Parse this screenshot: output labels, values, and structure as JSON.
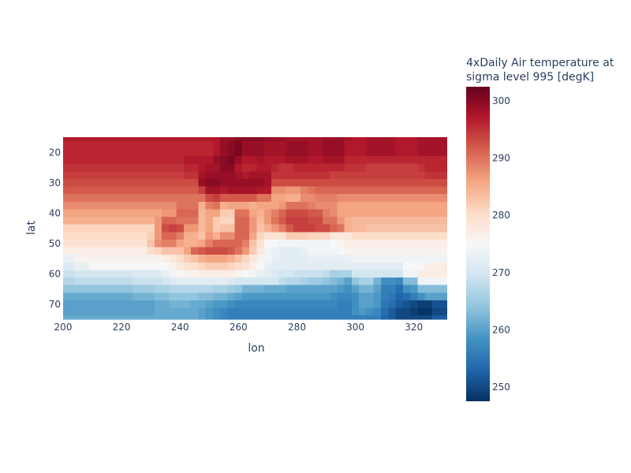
{
  "chart_data": {
    "type": "heatmap",
    "xlabel": "lon",
    "ylabel": "lat",
    "x_range": [
      200,
      332.5
    ],
    "y_range": [
      15,
      75
    ],
    "y_reversed": true,
    "x_ticks": [
      "200",
      "220",
      "240",
      "260",
      "280",
      "300",
      "320"
    ],
    "y_ticks": [
      "20",
      "30",
      "40",
      "50",
      "60",
      "70"
    ],
    "x_tick_values": [
      200,
      220,
      240,
      260,
      280,
      300,
      320
    ],
    "y_tick_values": [
      20,
      30,
      40,
      50,
      60,
      70
    ],
    "lon_step": 2.5,
    "lat_step": 2.5,
    "lon": [
      200,
      202.5,
      205,
      207.5,
      210,
      212.5,
      215,
      217.5,
      220,
      222.5,
      225,
      227.5,
      230,
      232.5,
      235,
      237.5,
      240,
      242.5,
      245,
      247.5,
      250,
      252.5,
      255,
      257.5,
      260,
      262.5,
      265,
      267.5,
      270,
      272.5,
      275,
      277.5,
      280,
      282.5,
      285,
      287.5,
      290,
      292.5,
      295,
      297.5,
      300,
      302.5,
      305,
      307.5,
      310,
      312.5,
      315,
      317.5,
      320,
      322.5,
      325,
      327.5,
      330
    ],
    "lat": [
      15,
      17.5,
      20,
      22.5,
      25,
      27.5,
      30,
      32.5,
      35,
      37.5,
      40,
      42.5,
      45,
      47.5,
      50,
      52.5,
      55,
      57.5,
      60,
      62.5,
      65,
      67.5,
      70,
      72.5,
      75
    ],
    "z": [
      [
        297,
        297,
        297,
        297,
        297,
        297,
        297,
        297,
        297,
        297,
        297,
        297,
        297,
        297,
        297,
        297,
        297,
        297,
        297,
        297,
        297,
        297,
        299,
        299,
        300,
        300,
        300,
        300,
        299,
        299,
        299,
        298,
        298,
        298,
        298,
        298,
        299,
        299,
        299,
        298,
        297,
        297,
        298,
        298,
        298,
        298,
        297,
        297,
        297,
        298,
        298,
        298,
        298
      ],
      [
        296,
        296,
        296,
        296,
        296,
        296,
        296,
        296,
        296,
        296,
        296,
        296,
        296,
        296,
        296,
        296,
        296,
        296,
        296,
        296,
        296,
        297,
        299,
        300,
        301,
        299,
        299,
        299,
        298,
        298,
        298,
        299,
        299,
        299,
        298,
        298,
        299,
        299,
        299,
        297,
        297,
        297,
        298,
        298,
        298,
        298,
        297,
        297,
        297,
        298,
        298,
        298,
        298
      ],
      [
        296,
        296,
        296,
        296,
        296,
        296,
        296,
        296,
        296,
        296,
        296,
        296,
        296,
        296,
        296,
        296,
        296,
        296,
        296,
        296,
        296,
        297,
        299,
        300,
        301,
        299,
        299,
        299,
        298,
        298,
        298,
        299,
        299,
        299,
        298,
        298,
        299,
        299,
        299,
        297,
        297,
        297,
        298,
        298,
        298,
        298,
        297,
        297,
        297,
        298,
        298,
        298,
        298
      ],
      [
        296,
        296,
        296,
        296,
        296,
        296,
        296,
        296,
        296,
        296,
        296,
        296,
        296,
        296,
        296,
        296,
        296,
        297,
        297,
        297,
        297,
        299,
        300,
        301,
        299,
        297,
        297,
        298,
        297,
        297,
        297,
        298,
        298,
        298,
        297,
        297,
        298,
        298,
        298,
        296,
        296,
        296,
        296,
        296,
        296,
        296,
        296,
        296,
        296,
        296,
        296,
        296,
        296
      ],
      [
        295,
        295,
        295,
        295,
        295,
        295,
        295,
        295,
        295,
        295,
        295,
        295,
        295,
        295,
        295,
        295,
        295,
        296,
        296,
        297,
        298,
        298,
        300,
        300,
        297,
        296,
        296,
        297,
        297,
        296,
        295,
        295,
        296,
        296,
        296,
        296,
        296,
        296,
        296,
        295,
        295,
        295,
        294,
        294,
        294,
        294,
        294,
        294,
        294,
        295,
        296,
        296,
        296
      ],
      [
        294,
        294,
        294,
        294,
        294,
        294,
        294,
        294,
        294,
        294,
        294,
        294,
        294,
        294,
        294,
        294,
        294,
        295,
        295,
        298,
        299,
        299,
        299,
        299,
        298,
        297,
        298,
        298,
        298,
        295,
        295,
        295,
        295,
        295,
        295,
        295,
        295,
        294,
        294,
        294,
        294,
        294,
        294,
        294,
        294,
        294,
        294,
        294,
        294,
        294,
        295,
        295,
        295
      ],
      [
        293,
        293,
        293,
        293,
        293,
        293,
        293,
        293,
        293,
        293,
        293,
        293,
        293,
        293,
        293,
        293,
        293,
        293,
        293,
        299,
        300,
        300,
        299,
        299,
        299,
        299,
        299,
        299,
        298,
        293,
        293,
        293,
        293,
        293,
        293,
        293,
        293,
        293,
        293,
        293,
        293,
        293,
        293,
        293,
        293,
        293,
        293,
        293,
        293,
        293,
        293,
        293,
        293
      ],
      [
        292,
        292,
        292,
        292,
        292,
        292,
        292,
        292,
        292,
        292,
        292,
        292,
        292,
        292,
        292,
        292,
        292,
        292,
        292,
        294,
        298,
        298,
        297,
        298,
        298,
        298,
        298,
        297,
        297,
        288,
        288,
        287,
        287,
        289,
        290,
        291,
        291,
        291,
        291,
        291,
        291,
        291,
        291,
        291,
        291,
        291,
        291,
        291,
        291,
        291,
        291,
        291,
        291
      ],
      [
        290,
        290,
        290,
        290,
        290,
        290,
        290,
        290,
        290,
        290,
        290,
        290,
        290,
        290,
        290,
        290,
        290,
        290,
        290,
        290,
        293,
        294,
        292,
        292,
        292,
        292,
        292,
        290,
        290,
        286,
        286,
        285,
        285,
        288,
        288,
        289,
        289,
        289,
        288,
        288,
        288,
        288,
        288,
        288,
        288,
        288,
        288,
        288,
        288,
        288,
        288,
        288,
        288
      ],
      [
        288,
        288,
        288,
        288,
        288,
        288,
        288,
        288,
        288,
        288,
        288,
        288,
        288,
        288,
        288,
        288,
        290,
        290,
        290,
        285,
        289,
        290,
        285,
        286,
        286,
        286,
        285,
        286,
        286,
        286,
        287,
        290,
        290,
        290,
        289,
        288,
        288,
        288,
        286,
        286,
        286,
        286,
        286,
        286,
        286,
        286,
        286,
        286,
        286,
        286,
        286,
        286,
        286
      ],
      [
        286,
        286,
        286,
        286,
        286,
        286,
        286,
        286,
        286,
        286,
        286,
        286,
        286,
        286,
        287,
        287,
        291,
        291,
        291,
        284,
        286,
        286,
        282,
        282,
        290,
        290,
        286,
        285,
        287,
        289,
        291,
        293,
        293,
        293,
        292,
        292,
        289,
        288,
        286,
        286,
        286,
        286,
        286,
        286,
        286,
        286,
        286,
        286,
        286,
        286,
        286,
        286,
        286
      ],
      [
        285,
        285,
        285,
        285,
        285,
        285,
        285,
        285,
        285,
        285,
        285,
        285,
        285,
        287,
        291,
        291,
        290,
        290,
        290,
        284,
        286,
        282,
        281,
        281,
        291,
        291,
        287,
        284,
        287,
        290,
        292,
        294,
        294,
        294,
        293,
        293,
        290,
        290,
        287,
        285,
        284,
        284,
        284,
        284,
        284,
        284,
        284,
        284,
        284,
        284,
        284,
        284,
        284
      ],
      [
        281,
        281,
        281,
        281,
        281,
        281,
        281,
        281,
        281,
        281,
        281,
        281,
        281,
        287,
        293,
        294,
        293,
        287,
        287,
        284,
        286,
        282,
        283,
        283,
        291,
        291,
        287,
        283,
        285,
        287,
        289,
        292,
        294,
        294,
        294,
        293,
        293,
        291,
        290,
        285,
        284,
        284,
        283,
        283,
        283,
        283,
        283,
        283,
        283,
        283,
        283,
        283,
        283
      ],
      [
        280,
        280,
        280,
        280,
        280,
        280,
        280,
        280,
        280,
        280,
        280,
        280,
        282,
        287,
        291,
        291,
        289,
        285,
        285,
        283,
        287,
        285,
        288,
        288,
        291,
        291,
        286,
        281,
        279,
        279,
        279,
        282,
        282,
        282,
        281,
        281,
        281,
        278,
        278,
        278,
        280,
        280,
        280,
        280,
        280,
        280,
        280,
        280,
        280,
        280,
        280,
        280,
        280
      ],
      [
        279,
        279,
        279,
        279,
        279,
        279,
        279,
        279,
        279,
        279,
        279,
        279,
        283,
        288,
        289,
        289,
        286,
        285,
        285,
        286,
        289,
        291,
        291,
        291,
        291,
        289,
        283,
        279,
        275,
        275,
        274,
        274,
        274,
        274,
        274,
        274,
        274,
        275,
        276,
        277,
        277,
        277,
        277,
        277,
        277,
        277,
        277,
        277,
        277,
        277,
        277,
        277,
        277
      ],
      [
        277,
        277,
        277,
        277,
        277,
        277,
        277,
        277,
        277,
        277,
        277,
        277,
        280,
        281,
        283,
        283,
        283,
        286,
        291,
        292,
        293,
        293,
        293,
        292,
        290,
        287,
        282,
        278,
        274,
        273,
        272,
        272,
        272,
        273,
        274,
        274,
        274,
        274,
        275,
        276,
        276,
        276,
        276,
        276,
        276,
        276,
        276,
        276,
        276,
        276,
        276,
        276,
        276
      ],
      [
        273,
        273,
        276,
        276,
        276,
        276,
        276,
        276,
        276,
        276,
        276,
        276,
        276,
        276,
        277,
        278,
        280,
        282,
        283,
        285,
        286,
        286,
        286,
        285,
        283,
        281,
        278,
        276,
        274,
        273,
        272,
        272,
        272,
        272,
        273,
        273,
        273,
        273,
        273,
        273,
        274,
        274,
        274,
        274,
        274,
        274,
        274,
        274,
        274,
        274,
        274,
        274,
        274
      ],
      [
        271,
        271,
        273,
        273,
        275,
        275,
        275,
        275,
        275,
        275,
        275,
        275,
        275,
        275,
        275,
        276,
        278,
        279,
        280,
        281,
        282,
        282,
        282,
        281,
        280,
        279,
        277,
        275,
        273,
        272,
        272,
        272,
        272,
        272,
        272,
        272,
        272,
        272,
        272,
        272,
        272,
        272,
        272,
        272,
        272,
        272,
        272,
        275,
        275,
        275,
        277,
        277,
        277
      ],
      [
        269,
        269,
        270,
        270,
        270,
        270,
        270,
        270,
        270,
        270,
        271,
        271,
        271,
        271,
        273,
        274,
        275,
        276,
        276,
        277,
        277,
        277,
        277,
        277,
        276,
        275,
        274,
        273,
        272,
        271,
        270,
        270,
        269,
        269,
        269,
        269,
        268,
        266,
        266,
        266,
        270,
        270,
        270,
        270,
        270,
        270,
        270,
        274,
        274,
        277,
        277,
        277,
        277
      ],
      [
        267,
        267,
        268,
        268,
        268,
        268,
        268,
        268,
        268,
        268,
        269,
        269,
        269,
        269,
        270,
        271,
        272,
        272,
        272,
        272,
        272,
        272,
        272,
        271,
        270,
        270,
        270,
        270,
        270,
        270,
        268,
        267,
        267,
        266,
        265,
        265,
        264,
        263,
        262,
        260,
        264,
        266,
        266,
        262,
        258,
        258,
        257,
        263,
        263,
        274,
        274,
        274,
        274
      ],
      [
        264,
        264,
        264,
        264,
        264,
        264,
        264,
        264,
        264,
        264,
        265,
        265,
        265,
        266,
        266,
        267,
        267,
        267,
        267,
        267,
        267,
        266,
        266,
        265,
        264,
        262,
        262,
        262,
        261,
        261,
        261,
        260,
        260,
        260,
        260,
        260,
        260,
        260,
        259,
        258,
        260,
        262,
        262,
        260,
        256,
        256,
        254,
        258,
        259,
        263,
        263,
        263,
        263
      ],
      [
        261,
        261,
        261,
        261,
        261,
        261,
        261,
        261,
        261,
        261,
        262,
        262,
        262,
        263,
        263,
        264,
        264,
        264,
        264,
        263,
        263,
        262,
        262,
        261,
        260,
        259,
        259,
        259,
        259,
        259,
        259,
        259,
        259,
        259,
        259,
        259,
        259,
        258,
        257,
        257,
        258,
        260,
        260,
        259,
        256,
        255,
        253,
        254,
        256,
        258,
        260,
        260,
        260
      ],
      [
        260,
        260,
        260,
        260,
        260,
        260,
        260,
        260,
        260,
        260,
        260,
        260,
        260,
        261,
        261,
        262,
        262,
        262,
        261,
        261,
        260,
        259,
        259,
        258,
        257,
        257,
        257,
        257,
        257,
        257,
        257,
        257,
        257,
        257,
        257,
        257,
        257,
        257,
        256,
        256,
        258,
        260,
        260,
        259,
        255,
        254,
        252,
        251,
        250,
        249,
        249,
        251,
        251
      ],
      [
        260,
        260,
        260,
        260,
        260,
        260,
        260,
        260,
        260,
        260,
        260,
        260,
        260,
        261,
        261,
        261,
        261,
        261,
        261,
        260,
        259,
        258,
        257,
        256,
        256,
        256,
        256,
        256,
        256,
        256,
        256,
        256,
        256,
        256,
        256,
        256,
        256,
        256,
        256,
        256,
        258,
        259,
        258,
        257,
        254,
        252,
        250,
        250,
        249,
        248,
        248,
        250,
        250
      ],
      [
        261,
        261,
        261,
        261,
        261,
        261,
        261,
        261,
        261,
        261,
        261,
        261,
        261,
        261,
        261,
        261,
        261,
        261,
        261,
        260,
        259,
        258,
        257,
        256,
        256,
        256,
        256,
        256,
        256,
        256,
        256,
        256,
        256,
        256,
        256,
        256,
        256,
        256,
        256,
        256,
        256,
        256,
        256,
        256,
        253,
        252,
        250,
        250,
        250,
        250,
        250,
        252,
        252
      ]
    ],
    "zmin": 247.5,
    "zmax": 302.5,
    "colorscale_name": "RdBu_r",
    "colorscale": [
      "#053061",
      "#2166ac",
      "#4393c3",
      "#92c5de",
      "#d1e5f0",
      "#f7f7f7",
      "#fddbc7",
      "#f4a582",
      "#d6604d",
      "#b2182b",
      "#67001f"
    ],
    "colorbar": {
      "title_lines": [
        "4xDaily Air temperature at",
        "sigma level 995 [degK]"
      ],
      "ticks": [
        "250",
        "260",
        "270",
        "280",
        "290",
        "300"
      ],
      "tick_values": [
        250,
        260,
        270,
        280,
        290,
        300
      ]
    }
  }
}
